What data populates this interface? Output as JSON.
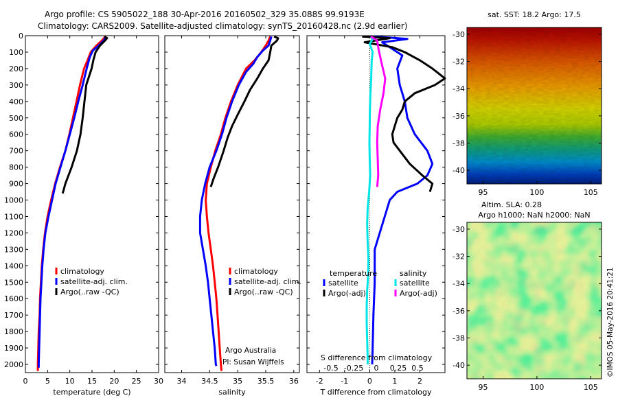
{
  "header": {
    "line1": "Argo profile: CS 5905022_188 30-Apr-2016 20160502_329 35.088S 99.9193E",
    "line2": "Climatology: CARS2009. Satellite-adjusted climatology: synTS_20160428.nc (2.9d earlier)"
  },
  "credit": {
    "institution": "Argo Australia",
    "pi": "PI: Susan Wijffels",
    "watermark": "©IMOS 05-May-2016 20:41:21"
  },
  "colors": {
    "climatology": "#ff0000",
    "satellite": "#0000ff",
    "argo": "#000000",
    "satellite_diff_s": "#00e5e5",
    "argo_diff_s": "#ff00ff"
  },
  "chart_data": [
    {
      "type": "line",
      "id": "temperature",
      "xlabel": "temperature (deg C)",
      "xlim": [
        0,
        30
      ],
      "ylim": [
        2050,
        0
      ],
      "xticks": [
        0,
        5,
        10,
        15,
        20,
        25,
        30
      ],
      "yticks": [
        0,
        100,
        200,
        300,
        400,
        500,
        600,
        700,
        800,
        900,
        1000,
        1100,
        1200,
        1300,
        1400,
        1500,
        1600,
        1700,
        1800,
        1900,
        2000
      ],
      "legend": [
        "climatology",
        "satellite-adj. clim.",
        "Argo(..raw -QC)"
      ],
      "series": [
        {
          "name": "climatology",
          "color": "#ff0000",
          "points": [
            [
              18.0,
              5
            ],
            [
              17.2,
              30
            ],
            [
              16.0,
              60
            ],
            [
              14.7,
              100
            ],
            [
              14.0,
              150
            ],
            [
              13.2,
              200
            ],
            [
              12.3,
              300
            ],
            [
              11.5,
              400
            ],
            [
              10.7,
              500
            ],
            [
              9.9,
              600
            ],
            [
              9.0,
              700
            ],
            [
              7.8,
              800
            ],
            [
              6.7,
              900
            ],
            [
              5.8,
              1000
            ],
            [
              5.0,
              1100
            ],
            [
              4.4,
              1200
            ],
            [
              4.0,
              1300
            ],
            [
              3.7,
              1400
            ],
            [
              3.5,
              1500
            ],
            [
              3.3,
              1600
            ],
            [
              3.2,
              1700
            ],
            [
              3.0,
              1800
            ],
            [
              2.9,
              1900
            ],
            [
              2.8,
              2000
            ],
            [
              2.8,
              2040
            ]
          ]
        },
        {
          "name": "satellite-adj. clim.",
          "color": "#0000ff",
          "points": [
            [
              18.2,
              5
            ],
            [
              17.6,
              30
            ],
            [
              16.5,
              60
            ],
            [
              15.2,
              90
            ],
            [
              14.5,
              130
            ],
            [
              13.8,
              200
            ],
            [
              12.9,
              300
            ],
            [
              11.9,
              400
            ],
            [
              11.0,
              500
            ],
            [
              10.0,
              600
            ],
            [
              9.0,
              700
            ],
            [
              7.9,
              800
            ],
            [
              6.8,
              900
            ],
            [
              6.0,
              1000
            ],
            [
              5.2,
              1100
            ],
            [
              4.5,
              1200
            ],
            [
              4.1,
              1300
            ],
            [
              3.8,
              1400
            ],
            [
              3.6,
              1500
            ],
            [
              3.4,
              1600
            ],
            [
              3.3,
              1700
            ],
            [
              3.2,
              1800
            ],
            [
              3.1,
              1900
            ],
            [
              3.0,
              2000
            ],
            [
              3.0,
              2020
            ]
          ]
        },
        {
          "name": "Argo(..raw -QC)",
          "color": "#000000",
          "points": [
            [
              17.8,
              5
            ],
            [
              18.4,
              15
            ],
            [
              17.9,
              30
            ],
            [
              16.8,
              60
            ],
            [
              15.8,
              100
            ],
            [
              15.3,
              150
            ],
            [
              14.9,
              200
            ],
            [
              14.3,
              250
            ],
            [
              13.7,
              300
            ],
            [
              13.3,
              400
            ],
            [
              12.9,
              500
            ],
            [
              12.4,
              600
            ],
            [
              11.6,
              700
            ],
            [
              10.4,
              800
            ],
            [
              9.0,
              900
            ],
            [
              8.4,
              960
            ]
          ]
        }
      ]
    },
    {
      "type": "line",
      "id": "salinity",
      "xlabel": "salinity",
      "xlim": [
        33.7,
        36.1
      ],
      "ylim": [
        2050,
        0
      ],
      "xticks": [
        34,
        34.5,
        35,
        35.5,
        36
      ],
      "legend": [
        "climatology",
        "satellite-adj. clim.",
        "Argo(..raw -QC)"
      ],
      "series": [
        {
          "name": "climatology",
          "color": "#ff0000",
          "points": [
            [
              35.58,
              5
            ],
            [
              35.55,
              30
            ],
            [
              35.5,
              60
            ],
            [
              35.42,
              100
            ],
            [
              35.3,
              150
            ],
            [
              35.15,
              200
            ],
            [
              35.0,
              300
            ],
            [
              34.88,
              400
            ],
            [
              34.78,
              500
            ],
            [
              34.7,
              600
            ],
            [
              34.6,
              700
            ],
            [
              34.52,
              800
            ],
            [
              34.45,
              900
            ],
            [
              34.43,
              1000
            ],
            [
              34.45,
              1100
            ],
            [
              34.48,
              1200
            ],
            [
              34.52,
              1300
            ],
            [
              34.56,
              1400
            ],
            [
              34.59,
              1500
            ],
            [
              34.62,
              1600
            ],
            [
              34.64,
              1700
            ],
            [
              34.66,
              1800
            ],
            [
              34.68,
              1900
            ],
            [
              34.7,
              2000
            ],
            [
              34.71,
              2040
            ]
          ]
        },
        {
          "name": "satellite-adj. clim.",
          "color": "#0000ff",
          "points": [
            [
              35.6,
              5
            ],
            [
              35.58,
              30
            ],
            [
              35.55,
              60
            ],
            [
              35.45,
              90
            ],
            [
              35.35,
              130
            ],
            [
              35.28,
              170
            ],
            [
              35.15,
              220
            ],
            [
              35.02,
              300
            ],
            [
              34.9,
              400
            ],
            [
              34.8,
              500
            ],
            [
              34.72,
              600
            ],
            [
              34.62,
              700
            ],
            [
              34.5,
              800
            ],
            [
              34.42,
              900
            ],
            [
              34.36,
              1000
            ],
            [
              34.33,
              1100
            ],
            [
              34.33,
              1200
            ],
            [
              34.38,
              1300
            ],
            [
              34.43,
              1400
            ],
            [
              34.47,
              1500
            ],
            [
              34.5,
              1600
            ],
            [
              34.53,
              1700
            ],
            [
              34.56,
              1800
            ],
            [
              34.59,
              1900
            ],
            [
              34.61,
              2000
            ],
            [
              34.62,
              2010
            ]
          ]
        },
        {
          "name": "Argo(..raw -QC)",
          "color": "#000000",
          "points": [
            [
              35.65,
              5
            ],
            [
              35.72,
              15
            ],
            [
              35.7,
              30
            ],
            [
              35.6,
              60
            ],
            [
              35.58,
              100
            ],
            [
              35.55,
              150
            ],
            [
              35.45,
              200
            ],
            [
              35.35,
              260
            ],
            [
              35.22,
              330
            ],
            [
              35.12,
              400
            ],
            [
              35.0,
              480
            ],
            [
              34.9,
              550
            ],
            [
              34.82,
              620
            ],
            [
              34.75,
              700
            ],
            [
              34.65,
              800
            ],
            [
              34.57,
              870
            ],
            [
              34.52,
              920
            ]
          ]
        }
      ]
    },
    {
      "type": "line",
      "id": "difference",
      "xlabel": "T difference from climatology",
      "xlabel_top": "S difference from climatology",
      "xlim": [
        -2.5,
        3
      ],
      "xticks": [
        -2,
        -1,
        0,
        1,
        2
      ],
      "xticks_s": [
        -0.5,
        -0.25,
        0,
        0.25,
        0.5
      ],
      "ylim": [
        2050,
        0
      ],
      "legend_temperature_title": "temperature",
      "legend_salinity_title": "salinity",
      "legend_labels": {
        "satellite": "satellite",
        "argo": "Argo(-adj)"
      },
      "series": [
        {
          "name": "T satellite",
          "color": "#0000ff",
          "points": [
            [
              0.2,
              5
            ],
            [
              1.5,
              20
            ],
            [
              0.5,
              40
            ],
            [
              0.9,
              80
            ],
            [
              1.3,
              120
            ],
            [
              1.1,
              200
            ],
            [
              1.2,
              300
            ],
            [
              1.4,
              400
            ],
            [
              1.5,
              500
            ],
            [
              1.8,
              600
            ],
            [
              2.3,
              700
            ],
            [
              2.5,
              780
            ],
            [
              2.3,
              850
            ],
            [
              1.9,
              900
            ],
            [
              1.1,
              950
            ],
            [
              0.8,
              1000
            ],
            [
              0.6,
              1100
            ],
            [
              0.4,
              1200
            ],
            [
              0.2,
              1300
            ],
            [
              0.2,
              1500
            ],
            [
              0.15,
              1700
            ],
            [
              0.12,
              1900
            ],
            [
              0.1,
              2000
            ]
          ]
        },
        {
          "name": "T Argo(-adj)",
          "color": "#000000",
          "points": [
            [
              -0.3,
              5
            ],
            [
              0.8,
              15
            ],
            [
              -0.2,
              40
            ],
            [
              0.9,
              70
            ],
            [
              1.4,
              100
            ],
            [
              2.0,
              150
            ],
            [
              2.5,
              200
            ],
            [
              3.0,
              260
            ],
            [
              2.6,
              300
            ],
            [
              1.8,
              350
            ],
            [
              1.4,
              400
            ],
            [
              1.3,
              450
            ],
            [
              1.1,
              500
            ],
            [
              1.0,
              550
            ],
            [
              0.9,
              600
            ],
            [
              0.95,
              650
            ],
            [
              1.2,
              700
            ],
            [
              1.6,
              780
            ],
            [
              2.1,
              850
            ],
            [
              2.5,
              900
            ],
            [
              2.4,
              950
            ]
          ]
        },
        {
          "name": "S satellite",
          "color": "#00e5e5",
          "points": [
            [
              0.05,
              5
            ],
            [
              0.12,
              20
            ],
            [
              0.0,
              50
            ],
            [
              0.12,
              100
            ],
            [
              0.08,
              150
            ],
            [
              0.06,
              250
            ],
            [
              0.03,
              350
            ],
            [
              0.01,
              450
            ],
            [
              0.0,
              550
            ],
            [
              -0.01,
              650
            ],
            [
              0.0,
              750
            ],
            [
              0.02,
              850
            ],
            [
              -0.02,
              950
            ],
            [
              -0.08,
              1050
            ],
            [
              -0.1,
              1150
            ],
            [
              -0.08,
              1250
            ],
            [
              -0.05,
              1350
            ],
            [
              -0.06,
              1450
            ],
            [
              -0.1,
              1550
            ],
            [
              -0.12,
              1650
            ],
            [
              -0.12,
              1750
            ],
            [
              -0.1,
              1850
            ],
            [
              -0.08,
              1950
            ],
            [
              -0.08,
              2000
            ]
          ]
        },
        {
          "name": "S Argo(-adj)",
          "color": "#ff00ff",
          "points": [
            [
              0.05,
              5
            ],
            [
              0.3,
              30
            ],
            [
              0.35,
              80
            ],
            [
              0.45,
              150
            ],
            [
              0.62,
              260
            ],
            [
              0.55,
              350
            ],
            [
              0.42,
              450
            ],
            [
              0.32,
              550
            ],
            [
              0.3,
              650
            ],
            [
              0.32,
              750
            ],
            [
              0.34,
              850
            ],
            [
              0.3,
              920
            ]
          ]
        }
      ]
    },
    {
      "type": "heatmap",
      "id": "sst",
      "title": "sat. SST: 18.2  Argo: 17.5",
      "xlim": [
        93.5,
        106
      ],
      "ylim": [
        -41,
        -29.5
      ],
      "xticks": [
        95,
        100,
        105
      ],
      "yticks": [
        -30,
        -32,
        -34,
        -36,
        -38,
        -40
      ]
    },
    {
      "type": "heatmap",
      "id": "sla",
      "title": "Altim. SLA: 0.28",
      "subtitle": "Argo h1000: NaN h2000: NaN",
      "xlim": [
        93.5,
        106
      ],
      "ylim": [
        -41,
        -29.5
      ],
      "xticks": [
        95,
        100,
        105
      ],
      "yticks": [
        -30,
        -32,
        -34,
        -36,
        -38,
        -40
      ]
    }
  ]
}
